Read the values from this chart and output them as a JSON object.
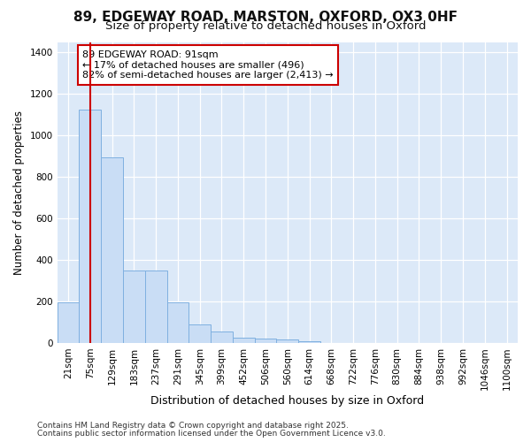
{
  "title1": "89, EDGEWAY ROAD, MARSTON, OXFORD, OX3 0HF",
  "title2": "Size of property relative to detached houses in Oxford",
  "xlabel": "Distribution of detached houses by size in Oxford",
  "ylabel": "Number of detached properties",
  "categories": [
    "21sqm",
    "75sqm",
    "129sqm",
    "183sqm",
    "237sqm",
    "291sqm",
    "345sqm",
    "399sqm",
    "452sqm",
    "506sqm",
    "560sqm",
    "614sqm",
    "668sqm",
    "722sqm",
    "776sqm",
    "830sqm",
    "884sqm",
    "938sqm",
    "992sqm",
    "1046sqm",
    "1100sqm"
  ],
  "values": [
    195,
    1125,
    895,
    350,
    350,
    195,
    90,
    55,
    25,
    20,
    15,
    10,
    0,
    0,
    0,
    0,
    0,
    0,
    0,
    0,
    0
  ],
  "bar_color": "#c9ddf5",
  "bar_edge_color": "#7fb0e0",
  "vline_x": 1,
  "vline_color": "#cc0000",
  "annotation_text": "89 EDGEWAY ROAD: 91sqm\n← 17% of detached houses are smaller (496)\n82% of semi-detached houses are larger (2,413) →",
  "annotation_fontsize": 8,
  "annotation_box_color": "#cc0000",
  "footer1": "Contains HM Land Registry data © Crown copyright and database right 2025.",
  "footer2": "Contains public sector information licensed under the Open Government Licence v3.0.",
  "ylim": [
    0,
    1450
  ],
  "yticks": [
    0,
    200,
    400,
    600,
    800,
    1000,
    1200,
    1400
  ],
  "fig_bg_color": "#ffffff",
  "plot_bg_color": "#dce9f8",
  "grid_color": "#ffffff",
  "title_fontsize": 11,
  "subtitle_fontsize": 9.5,
  "tick_fontsize": 7.5,
  "ylabel_fontsize": 8.5,
  "xlabel_fontsize": 9,
  "footer_fontsize": 6.5
}
